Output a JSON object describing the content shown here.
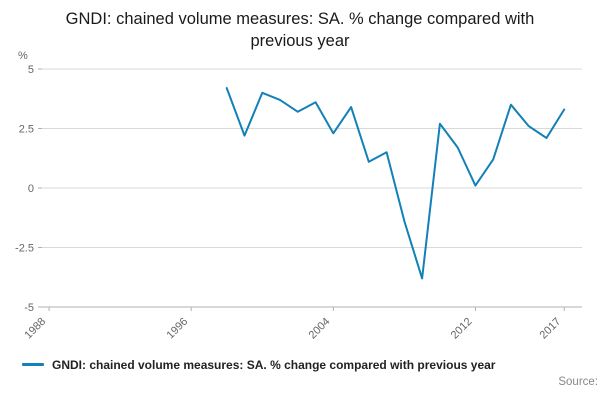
{
  "chart_data": {
    "type": "line",
    "title": "GNDI: chained volume measures: SA. % change compared with previous year",
    "unit": "%",
    "x": [
      1998,
      1999,
      2000,
      2001,
      2002,
      2003,
      2004,
      2005,
      2006,
      2007,
      2008,
      2009,
      2010,
      2011,
      2012,
      2013,
      2014,
      2015,
      2016,
      2017
    ],
    "values": [
      4.2,
      2.2,
      4.0,
      3.7,
      3.2,
      3.6,
      2.3,
      3.4,
      1.1,
      1.5,
      -1.4,
      -3.8,
      2.7,
      1.7,
      0.1,
      1.2,
      3.5,
      2.6,
      2.1,
      3.3
    ],
    "ylim": [
      -5,
      5
    ],
    "yticks": [
      5,
      2.5,
      0,
      -2.5,
      -5
    ],
    "xticks": [
      1988,
      1996,
      2004,
      2012,
      2017
    ],
    "xlim": [
      1987.6,
      2018
    ],
    "grid": true,
    "legend_position": "bottom",
    "series_color": "#1380b8",
    "colors": {
      "grid": "#d9d9d9",
      "axis": "#b0b0b0",
      "tick_text": "#666666"
    },
    "legend_label": "GNDI: chained volume measures: SA. % change compared with previous year",
    "source_label": "Source:"
  }
}
